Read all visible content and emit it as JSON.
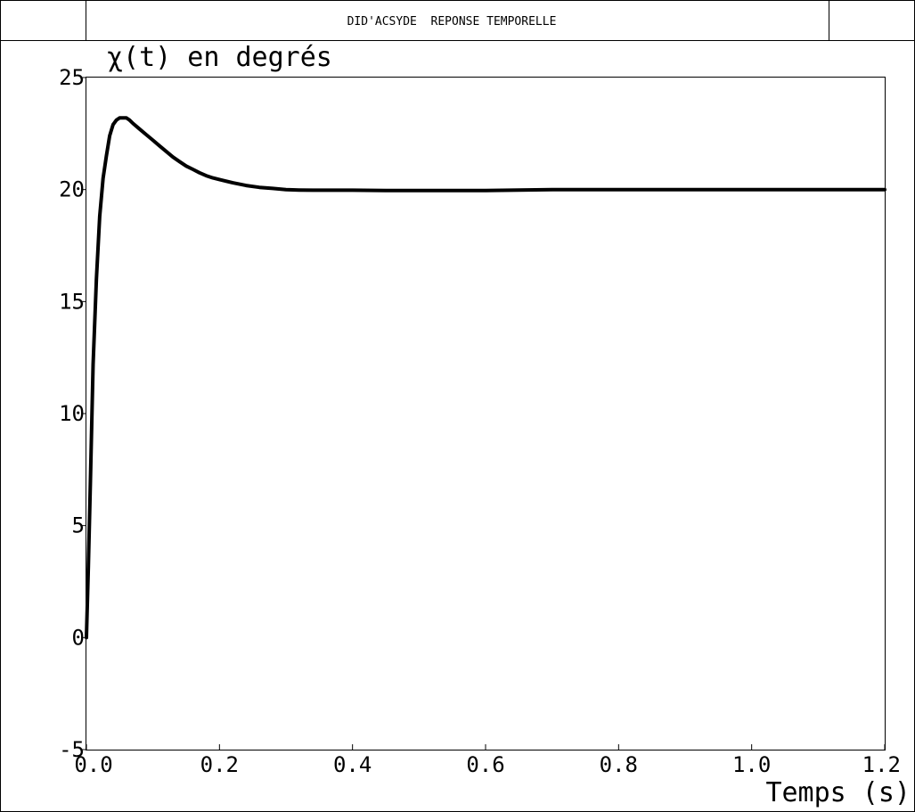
{
  "header": {
    "title": "DID'ACSYDE  REPONSE TEMPORELLE"
  },
  "chart_data": {
    "type": "line",
    "title": "DID'ACSYDE  REPONSE TEMPORELLE",
    "ylabel": "χ(t) en degrés",
    "xlabel": "Temps (s)",
    "xlim": [
      0,
      1.2
    ],
    "ylim": [
      -5,
      25
    ],
    "x_ticks": [
      0,
      0.2,
      0.4,
      0.6,
      0.8,
      1.0,
      1.2
    ],
    "x_tick_labels": [
      "0.0",
      "0.2",
      "0.4",
      "0.6",
      "0.8",
      "1.0",
      "1.2"
    ],
    "y_ticks": [
      -5,
      0,
      5,
      10,
      15,
      20,
      25
    ],
    "y_tick_labels": [
      "-5",
      "0",
      "5",
      "10",
      "15",
      "20",
      "25"
    ],
    "grid": false,
    "series": [
      {
        "name": "χ(t)",
        "color": "#000000",
        "x": [
          0,
          0.003,
          0.006,
          0.01,
          0.015,
          0.02,
          0.025,
          0.03,
          0.035,
          0.04,
          0.045,
          0.05,
          0.055,
          0.06,
          0.065,
          0.07,
          0.08,
          0.09,
          0.1,
          0.11,
          0.12,
          0.13,
          0.14,
          0.15,
          0.16,
          0.17,
          0.18,
          0.19,
          0.2,
          0.22,
          0.24,
          0.26,
          0.28,
          0.3,
          0.32,
          0.34,
          0.36,
          0.38,
          0.4,
          0.45,
          0.5,
          0.55,
          0.6,
          0.65,
          0.7,
          0.8,
          0.9,
          1.0,
          1.1,
          1.2
        ],
        "values": [
          0,
          3.2,
          7.0,
          12.2,
          16.0,
          18.8,
          20.5,
          21.5,
          22.4,
          22.9,
          23.1,
          23.2,
          23.2,
          23.2,
          23.1,
          22.95,
          22.7,
          22.45,
          22.2,
          21.95,
          21.7,
          21.45,
          21.25,
          21.05,
          20.9,
          20.75,
          20.62,
          20.52,
          20.45,
          20.3,
          20.18,
          20.1,
          20.05,
          20.0,
          19.98,
          19.97,
          19.97,
          19.97,
          19.97,
          19.96,
          19.96,
          19.96,
          19.96,
          19.98,
          20.0,
          20.0,
          20.0,
          20.0,
          20.0,
          20.0
        ]
      }
    ]
  }
}
